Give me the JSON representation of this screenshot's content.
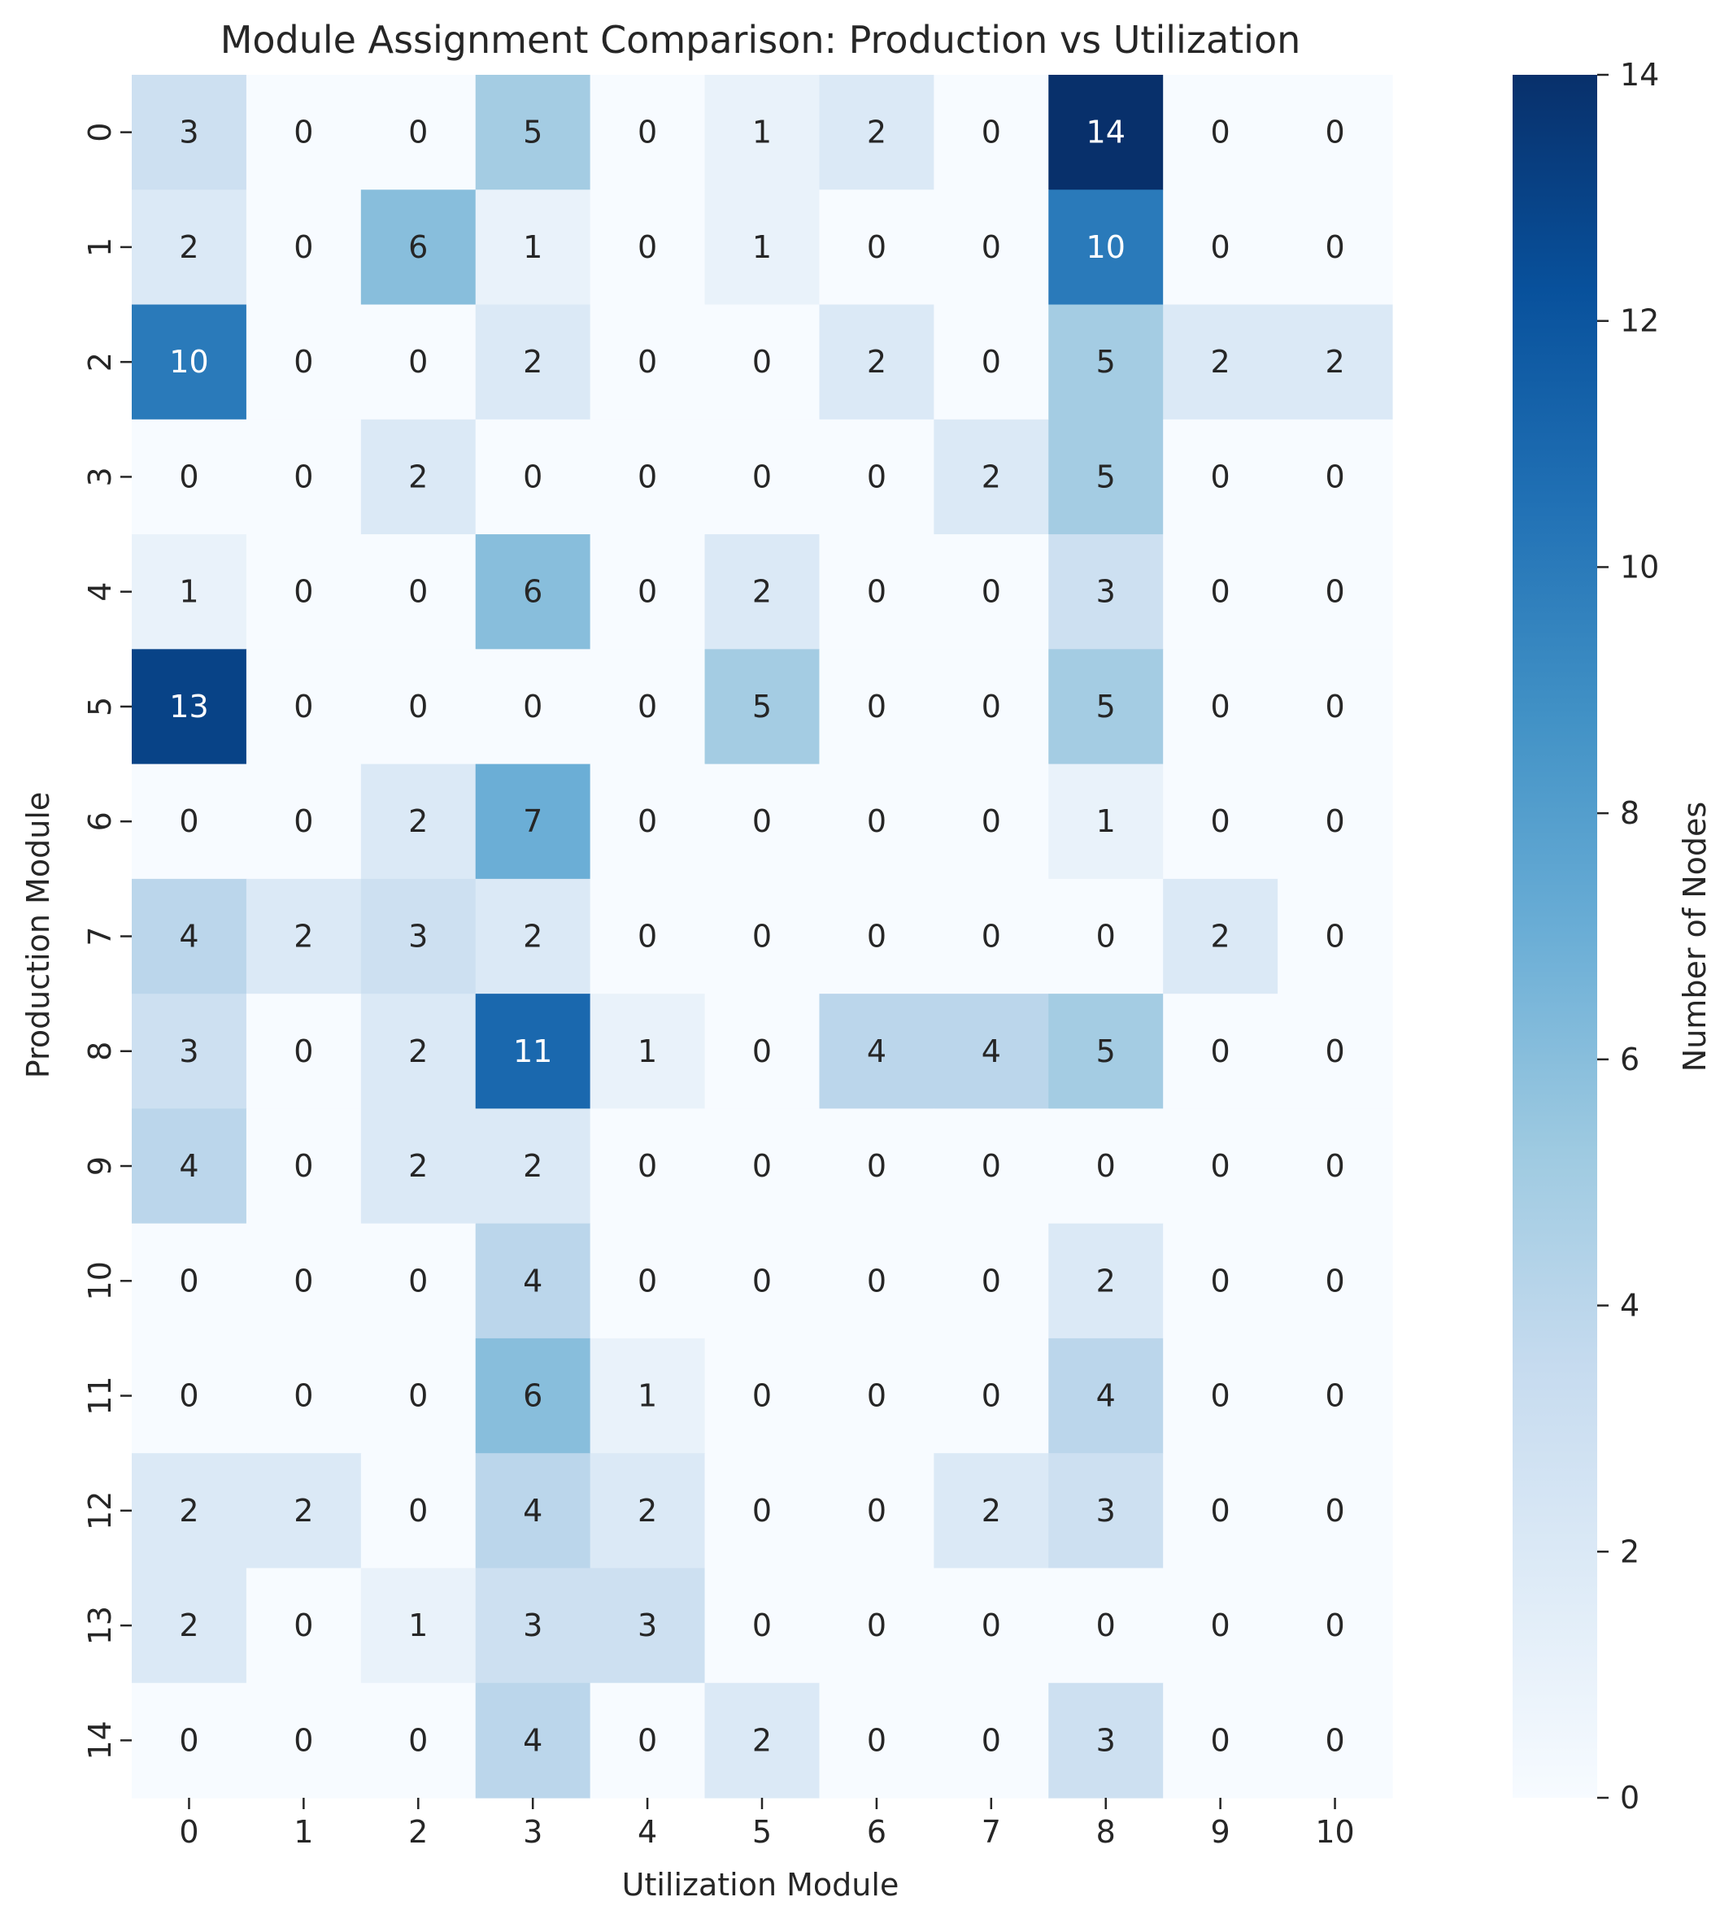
{
  "chart_data": {
    "type": "heatmap",
    "title": "Module Assignment Comparison: Production vs Utilization",
    "xlabel": "Utilization Module",
    "ylabel": "Production Module",
    "x": [
      "0",
      "1",
      "2",
      "3",
      "4",
      "5",
      "6",
      "7",
      "8",
      "9",
      "10"
    ],
    "y": [
      "0",
      "1",
      "2",
      "3",
      "4",
      "5",
      "6",
      "7",
      "8",
      "9",
      "10",
      "11",
      "12",
      "13",
      "14"
    ],
    "values": [
      [
        3,
        0,
        0,
        5,
        0,
        1,
        2,
        0,
        14,
        0,
        0
      ],
      [
        2,
        0,
        6,
        1,
        0,
        1,
        0,
        0,
        10,
        0,
        0
      ],
      [
        10,
        0,
        0,
        2,
        0,
        0,
        2,
        0,
        5,
        2,
        2
      ],
      [
        0,
        0,
        2,
        0,
        0,
        0,
        0,
        2,
        5,
        0,
        0
      ],
      [
        1,
        0,
        0,
        6,
        0,
        2,
        0,
        0,
        3,
        0,
        0
      ],
      [
        13,
        0,
        0,
        0,
        0,
        5,
        0,
        0,
        5,
        0,
        0
      ],
      [
        0,
        0,
        2,
        7,
        0,
        0,
        0,
        0,
        1,
        0,
        0
      ],
      [
        4,
        2,
        3,
        2,
        0,
        0,
        0,
        0,
        0,
        2,
        0
      ],
      [
        3,
        0,
        2,
        11,
        1,
        0,
        4,
        4,
        5,
        0,
        0
      ],
      [
        4,
        0,
        2,
        2,
        0,
        0,
        0,
        0,
        0,
        0,
        0
      ],
      [
        0,
        0,
        0,
        4,
        0,
        0,
        0,
        0,
        2,
        0,
        0
      ],
      [
        0,
        0,
        0,
        6,
        1,
        0,
        0,
        0,
        4,
        0,
        0
      ],
      [
        2,
        2,
        0,
        4,
        2,
        0,
        0,
        2,
        3,
        0,
        0
      ],
      [
        2,
        0,
        1,
        3,
        3,
        0,
        0,
        0,
        0,
        0,
        0
      ],
      [
        0,
        0,
        0,
        4,
        0,
        2,
        0,
        0,
        3,
        0,
        0
      ]
    ],
    "colorbar": {
      "label": "Number of Nodes",
      "min": 0,
      "max": 14,
      "ticks": [
        0,
        2,
        4,
        6,
        8,
        10,
        12,
        14
      ]
    },
    "colormap": "Blues",
    "colormap_stops": [
      "#f7fbff",
      "#deebf7",
      "#c6dbef",
      "#9ecae1",
      "#6baed6",
      "#4292c6",
      "#2171b5",
      "#08519c",
      "#08306b"
    ],
    "annotation_light_color": "#ffffff",
    "annotation_dark_color": "#262626"
  }
}
